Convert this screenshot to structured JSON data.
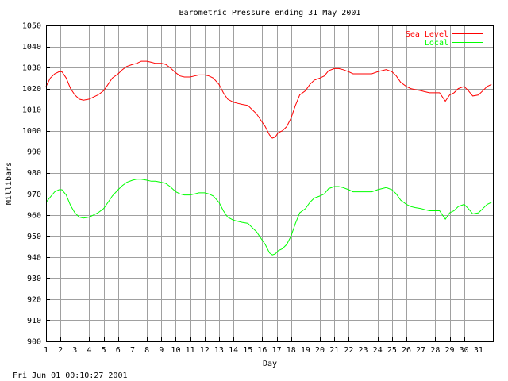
{
  "chart_data": {
    "type": "line",
    "title": "Barometric Pressure ending 31 May 2001",
    "xlabel": "Day",
    "ylabel": "Millibars",
    "xlim": [
      1,
      32
    ],
    "ylim": [
      900,
      1050
    ],
    "x_ticks": [
      1,
      2,
      3,
      4,
      5,
      6,
      7,
      8,
      9,
      10,
      11,
      12,
      13,
      14,
      15,
      16,
      17,
      18,
      19,
      20,
      21,
      22,
      23,
      24,
      25,
      26,
      27,
      28,
      29,
      30,
      31
    ],
    "y_ticks": [
      900,
      910,
      920,
      930,
      940,
      950,
      960,
      970,
      980,
      990,
      1000,
      1010,
      1020,
      1030,
      1040,
      1050
    ],
    "grid": true,
    "legend_position": "top-right",
    "series": [
      {
        "name": "Sea Level",
        "color": "#ff0000",
        "x": [
          1,
          1.3,
          1.6,
          1.9,
          2.1,
          2.4,
          2.7,
          3.0,
          3.3,
          3.6,
          4.0,
          4.3,
          4.6,
          5.0,
          5.3,
          5.6,
          6.0,
          6.3,
          6.6,
          7.0,
          7.3,
          7.6,
          8.0,
          8.3,
          8.6,
          9.0,
          9.3,
          9.6,
          10.0,
          10.3,
          10.6,
          11.0,
          11.3,
          11.6,
          12.0,
          12.3,
          12.6,
          13.0,
          13.3,
          13.6,
          14.0,
          14.3,
          14.6,
          15.0,
          15.3,
          15.6,
          15.9,
          16.2,
          16.5,
          16.7,
          16.9,
          17.1,
          17.4,
          17.7,
          18.0,
          18.3,
          18.6,
          19.0,
          19.3,
          19.6,
          20.0,
          20.3,
          20.6,
          21.0,
          21.3,
          21.6,
          22.0,
          22.3,
          22.6,
          23.0,
          23.3,
          23.6,
          24.0,
          24.3,
          24.6,
          25.0,
          25.3,
          25.6,
          26.0,
          26.3,
          26.6,
          27.0,
          27.3,
          27.6,
          28.0,
          28.3,
          28.5,
          28.7,
          29.0,
          29.3,
          29.6,
          30.0,
          30.3,
          30.6,
          31.0,
          31.3,
          31.6,
          31.9
        ],
        "values": [
          1021,
          1025,
          1027,
          1028,
          1028,
          1025,
          1020,
          1017,
          1015,
          1014.5,
          1015,
          1016,
          1017,
          1019,
          1022,
          1025,
          1027,
          1029,
          1030.5,
          1031.5,
          1032,
          1033,
          1033,
          1032.5,
          1032,
          1032,
          1031.5,
          1030,
          1027.5,
          1026,
          1025.5,
          1025.5,
          1026,
          1026.5,
          1026.5,
          1026,
          1025,
          1022,
          1018,
          1015,
          1013.5,
          1013,
          1012.5,
          1012,
          1010,
          1008,
          1005,
          1002,
          998,
          996.5,
          997,
          999,
          1000,
          1002,
          1006,
          1012,
          1017,
          1019,
          1022,
          1024,
          1025,
          1026,
          1028.5,
          1029.5,
          1029.5,
          1029,
          1028,
          1027,
          1027,
          1027,
          1027,
          1027,
          1028,
          1028.5,
          1029,
          1028,
          1026,
          1023,
          1021,
          1020,
          1019.5,
          1019,
          1018.5,
          1018,
          1018,
          1018,
          1016,
          1014,
          1017,
          1018,
          1020,
          1021,
          1019,
          1016.5,
          1017,
          1019,
          1021,
          1022
        ]
      },
      {
        "name": "Local",
        "color": "#00ff00",
        "x": [
          1,
          1.3,
          1.6,
          1.9,
          2.1,
          2.4,
          2.7,
          3.0,
          3.3,
          3.6,
          4.0,
          4.3,
          4.6,
          5.0,
          5.3,
          5.6,
          6.0,
          6.3,
          6.6,
          7.0,
          7.3,
          7.6,
          8.0,
          8.3,
          8.6,
          9.0,
          9.3,
          9.6,
          10.0,
          10.3,
          10.6,
          11.0,
          11.3,
          11.6,
          12.0,
          12.3,
          12.6,
          13.0,
          13.3,
          13.6,
          14.0,
          14.3,
          14.6,
          15.0,
          15.3,
          15.6,
          15.9,
          16.2,
          16.5,
          16.7,
          16.9,
          17.1,
          17.4,
          17.7,
          18.0,
          18.3,
          18.6,
          19.0,
          19.3,
          19.6,
          20.0,
          20.3,
          20.6,
          21.0,
          21.3,
          21.6,
          22.0,
          22.3,
          22.6,
          23.0,
          23.3,
          23.6,
          24.0,
          24.3,
          24.6,
          25.0,
          25.3,
          25.6,
          26.0,
          26.3,
          26.6,
          27.0,
          27.3,
          27.6,
          28.0,
          28.3,
          28.5,
          28.7,
          29.0,
          29.3,
          29.6,
          30.0,
          30.3,
          30.6,
          31.0,
          31.3,
          31.6,
          31.9
        ],
        "values": [
          966,
          968.5,
          971,
          972,
          972,
          969.5,
          964.5,
          961,
          959,
          958.5,
          959,
          960,
          961,
          963,
          966,
          969,
          972,
          974,
          975.5,
          976.5,
          977,
          977,
          976.5,
          976,
          976,
          975.5,
          975,
          973.5,
          971,
          970,
          969.5,
          969.5,
          970,
          970.5,
          970.5,
          970,
          969,
          966,
          962,
          959,
          957.5,
          957,
          956.5,
          956,
          954,
          952,
          949,
          946,
          942,
          941,
          941.5,
          943,
          944,
          946,
          950,
          956,
          961,
          963,
          966,
          968,
          969,
          970,
          972.5,
          973.5,
          973.5,
          973,
          972,
          971,
          971,
          971,
          971,
          971,
          972,
          972.5,
          973,
          972,
          970,
          967,
          965,
          964,
          963.5,
          963,
          962.5,
          962,
          962,
          962,
          960,
          958,
          961,
          962,
          964,
          965,
          963,
          960.5,
          961,
          963,
          965,
          966
        ]
      }
    ]
  },
  "footer": {
    "timestamp": "Fri Jun 01 00:10:27 2001"
  }
}
